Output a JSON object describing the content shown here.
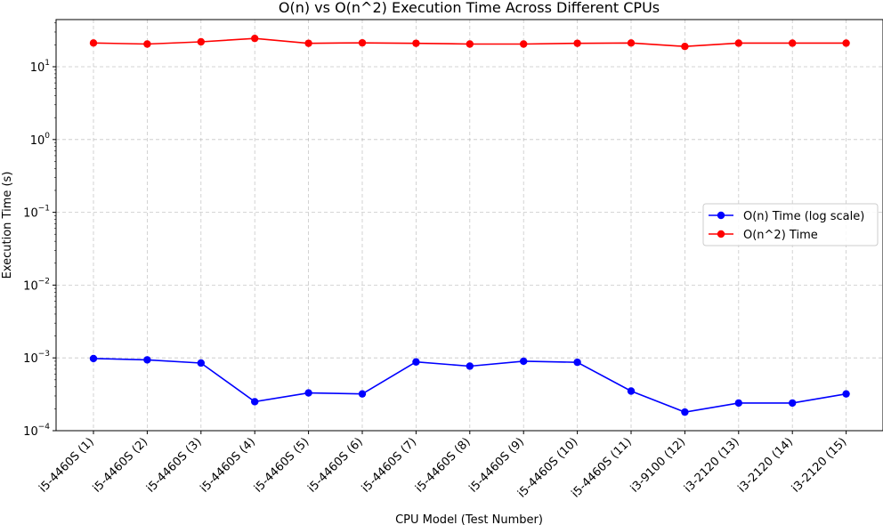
{
  "chart_data": {
    "type": "line",
    "title": "O(n) vs O(n^2) Execution Time Across Different CPUs",
    "xlabel": "CPU Model (Test Number)",
    "ylabel": "Execution Time (s)",
    "yscale": "log",
    "ylim": [
      0.0001,
      40
    ],
    "grid": true,
    "legend_position": "center-right",
    "categories": [
      "i5-4460S (1)",
      "i5-4460S (2)",
      "i5-4460S (3)",
      "i5-4460S (4)",
      "i5-4460S (5)",
      "i5-4460S (6)",
      "i5-4460S (7)",
      "i5-4460S (8)",
      "i5-4460S (9)",
      "i5-4460S (10)",
      "i5-4460S (11)",
      "i3-9100 (12)",
      "i3-2120 (13)",
      "i3-2120 (14)",
      "i3-2120 (15)"
    ],
    "yticks": [
      {
        "value": 10,
        "base": "10",
        "exp": "1"
      },
      {
        "value": 1,
        "base": "10",
        "exp": "0"
      },
      {
        "value": 0.1,
        "base": "10",
        "exp": "−1"
      },
      {
        "value": 0.01,
        "base": "10",
        "exp": "−2"
      },
      {
        "value": 0.001,
        "base": "10",
        "exp": "−3"
      },
      {
        "value": 0.0001,
        "base": "10",
        "exp": "−4"
      }
    ],
    "series": [
      {
        "name": "O(n) Time (log scale)",
        "color": "#0000ff",
        "values": [
          0.00098,
          0.00094,
          0.00085,
          0.00025,
          0.00033,
          0.00032,
          0.00088,
          0.00077,
          0.0009,
          0.00087,
          0.00035,
          0.00018,
          0.00024,
          0.00024,
          0.00032
        ]
      },
      {
        "name": "O(n^2) Time",
        "color": "#ff0000",
        "values": [
          21.2,
          20.5,
          22.0,
          24.5,
          21.0,
          21.3,
          21.0,
          20.5,
          20.5,
          21.0,
          21.2,
          19.0,
          21.1,
          21.1,
          21.1
        ]
      }
    ]
  }
}
